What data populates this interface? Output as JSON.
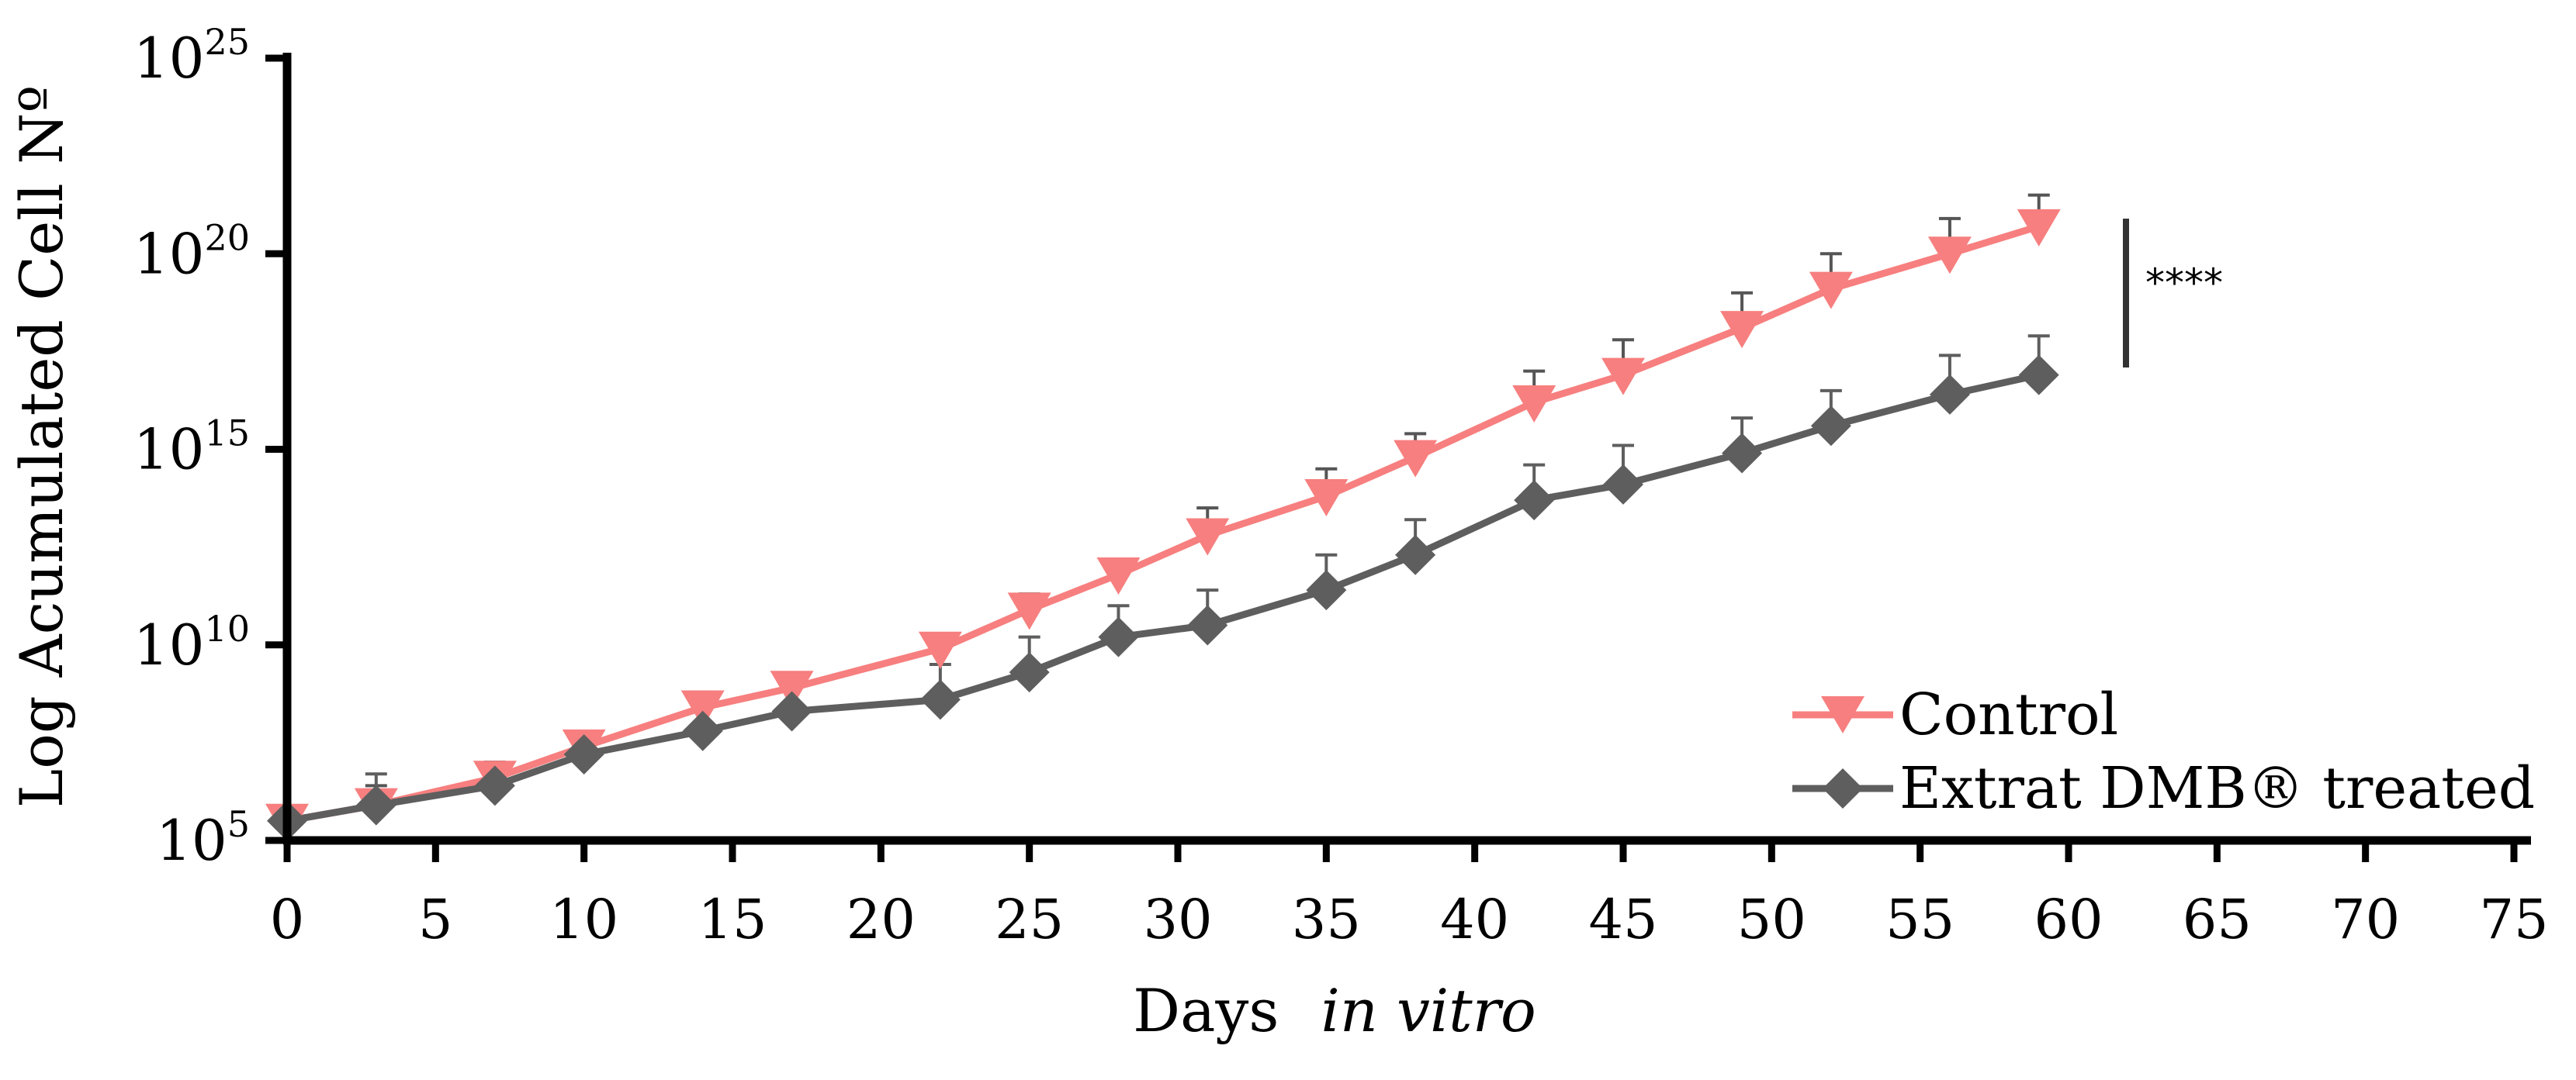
{
  "chart_data": {
    "type": "line",
    "title": "",
    "xlabel": "Days",
    "xlabel_italic": "in vitro",
    "ylabel": "Log Acumulated Cell Nº",
    "yscale": "log10",
    "xlim": [
      0,
      75
    ],
    "ylim_exponent": [
      5,
      25
    ],
    "x_ticks": [
      "0",
      "5",
      "10",
      "15",
      "20",
      "25",
      "30",
      "35",
      "40",
      "45",
      "50",
      "55",
      "60",
      "65",
      "70",
      "75"
    ],
    "y_ticks": [
      {
        "base": "10",
        "exp": "5"
      },
      {
        "base": "10",
        "exp": "10"
      },
      {
        "base": "10",
        "exp": "15"
      },
      {
        "base": "10",
        "exp": "20"
      },
      {
        "base": "10",
        "exp": "25"
      }
    ],
    "legend_position": "bottom-right",
    "significance_label": "****",
    "series": [
      {
        "name": "Control",
        "color": "#f77f7f",
        "marker": "triangle-down",
        "x": [
          0,
          3,
          7,
          10,
          14,
          17,
          22,
          25,
          28,
          31,
          35,
          38,
          42,
          45,
          49,
          52,
          56,
          59
        ],
        "log_y": [
          5.5,
          5.9,
          6.6,
          7.4,
          8.4,
          8.9,
          9.9,
          10.9,
          11.8,
          12.8,
          13.8,
          14.8,
          16.2,
          16.9,
          18.1,
          19.1,
          20.0,
          20.7
        ],
        "err_log": [
          0.1,
          0.5,
          0.4,
          0.2,
          0.2,
          0.2,
          0.2,
          0.4,
          0.3,
          0.7,
          0.7,
          0.6,
          0.8,
          0.9,
          0.9,
          0.9,
          0.9,
          0.8
        ]
      },
      {
        "name": "Extrat DMB® treated",
        "color": "#5e5e5e",
        "marker": "diamond",
        "x": [
          0,
          3,
          7,
          10,
          14,
          17,
          22,
          25,
          28,
          31,
          35,
          38,
          42,
          45,
          49,
          52,
          56,
          59
        ],
        "log_y": [
          5.5,
          5.9,
          6.4,
          7.2,
          7.8,
          8.3,
          8.6,
          9.3,
          10.2,
          10.5,
          11.4,
          12.3,
          13.7,
          14.1,
          14.9,
          15.6,
          16.4,
          16.9
        ],
        "err_log": [
          0.1,
          0.8,
          0.6,
          0.1,
          0.1,
          0.1,
          0.9,
          0.9,
          0.8,
          0.9,
          0.9,
          0.9,
          0.9,
          1.0,
          0.9,
          0.9,
          1.0,
          1.0
        ]
      }
    ]
  }
}
